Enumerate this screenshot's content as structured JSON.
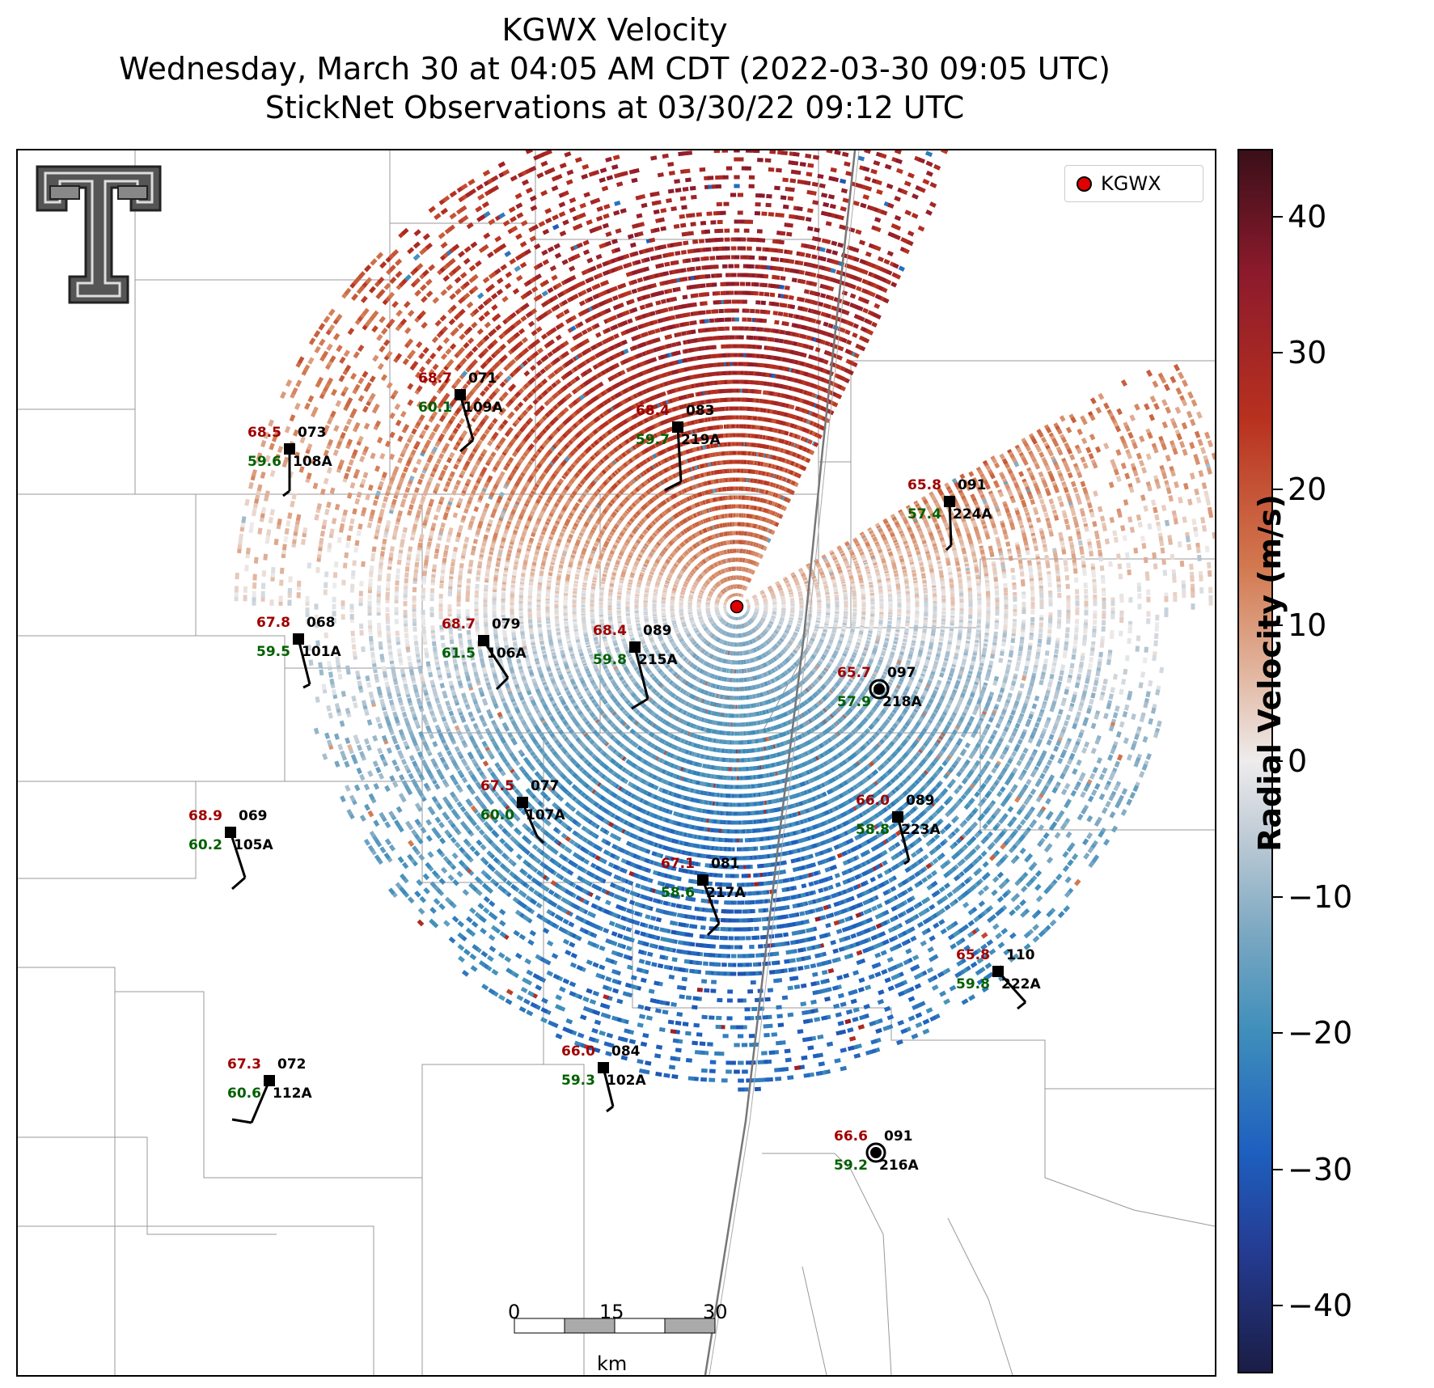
{
  "title": {
    "line1": "KGWX Velocity",
    "line2": "Wednesday, March 30 at 04:05 AM CDT (2022-03-30 09:05 UTC)",
    "line3": "StickNet Observations at 03/30/22 09:12 UTC"
  },
  "legend": {
    "label": "KGWX",
    "marker_color": "#e00000"
  },
  "colorbar": {
    "label": "Radial Velocity (m/s)",
    "ticks": [
      "40",
      "30",
      "20",
      "10",
      "0",
      "−10",
      "−20",
      "−30",
      "−40"
    ],
    "tick_values": [
      40,
      30,
      20,
      10,
      0,
      -10,
      -20,
      -30,
      -40
    ],
    "range": [
      -45,
      45
    ],
    "colors": {
      "max": "#3a0f19",
      "positive": "#b8311f",
      "zero": "#eeecec",
      "negative": "#3f8fbb",
      "min": "#1a1d45"
    }
  },
  "scale_bar": {
    "labels": [
      "0",
      "15",
      "30"
    ],
    "unit": "km"
  },
  "logo": {
    "name": "texas-tech-double-t-logo"
  },
  "stations": [
    {
      "id": "109A",
      "temp": "68.7",
      "dew": "60.1",
      "dir": "071"
    },
    {
      "id": "219A",
      "temp": "68.4",
      "dew": "59.7",
      "dir": "083"
    },
    {
      "id": "108A",
      "temp": "68.5",
      "dew": "59.6",
      "dir": "073"
    },
    {
      "id": "224A",
      "temp": "65.8",
      "dew": "57.4",
      "dir": "091"
    },
    {
      "id": "101A",
      "temp": "67.8",
      "dew": "59.5",
      "dir": "068"
    },
    {
      "id": "106A",
      "temp": "68.7",
      "dew": "61.5",
      "dir": "079"
    },
    {
      "id": "215A",
      "temp": "68.4",
      "dew": "59.8",
      "dir": "089"
    },
    {
      "id": "218A",
      "temp": "65.7",
      "dew": "57.9",
      "dir": "097"
    },
    {
      "id": "107A",
      "temp": "67.5",
      "dew": "60.0",
      "dir": "077"
    },
    {
      "id": "105A",
      "temp": "68.9",
      "dew": "60.2",
      "dir": "069"
    },
    {
      "id": "223A",
      "temp": "66.0",
      "dew": "58.8",
      "dir": "089"
    },
    {
      "id": "217A",
      "temp": "67.1",
      "dew": "58.6",
      "dir": "081"
    },
    {
      "id": "222A",
      "temp": "65.8",
      "dew": "59.8",
      "dir": "110"
    },
    {
      "id": "112A",
      "temp": "67.3",
      "dew": "60.6",
      "dir": "072"
    },
    {
      "id": "102A",
      "temp": "66.0",
      "dew": "59.3",
      "dir": "084"
    },
    {
      "id": "216A",
      "temp": "66.6",
      "dew": "59.2",
      "dir": "091"
    }
  ]
}
